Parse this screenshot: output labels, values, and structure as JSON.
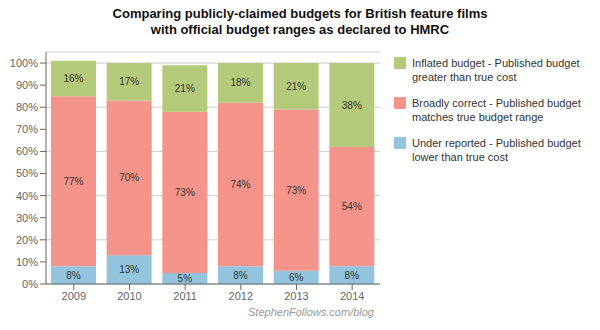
{
  "chart_data": {
    "type": "bar",
    "title": "Comparing publicly-claimed budgets for British feature films\nwith official budget ranges as declared to HMRC",
    "categories": [
      "2009",
      "2010",
      "2011",
      "2012",
      "2013",
      "2014"
    ],
    "series": [
      {
        "name": "Under reported - Published budget\nlower than true cost",
        "color": "#92c4de",
        "values": [
          8,
          13,
          5,
          8,
          6,
          8
        ],
        "value_labels": [
          "8%",
          "13%",
          "5%",
          "8%",
          "6%",
          "8%"
        ]
      },
      {
        "name": "Broadly correct - Published budget\nmatches true budget range",
        "color": "#f4948a",
        "values": [
          77,
          70,
          73,
          74,
          73,
          54
        ],
        "value_labels": [
          "77%",
          "70%",
          "73%",
          "74%",
          "73%",
          "54%"
        ]
      },
      {
        "name": "Inflated budget - Published budget\ngreater than true cost",
        "color": "#b5c97a",
        "values": [
          16,
          17,
          21,
          18,
          21,
          38
        ],
        "value_labels": [
          "16%",
          "17%",
          "21%",
          "18%",
          "21%",
          "38%"
        ]
      }
    ],
    "stacked": true,
    "data_labels": true,
    "ylim": [
      0,
      105
    ],
    "yticks": [
      {
        "value": 0,
        "label": "0%"
      },
      {
        "value": 10,
        "label": "10%"
      },
      {
        "value": 20,
        "label": "20%"
      },
      {
        "value": 30,
        "label": "30%"
      },
      {
        "value": 40,
        "label": "40%"
      },
      {
        "value": 50,
        "label": "50%"
      },
      {
        "value": 60,
        "label": "60%"
      },
      {
        "value": 70,
        "label": "70%"
      },
      {
        "value": 80,
        "label": "80%"
      },
      {
        "value": 90,
        "label": "90%"
      },
      {
        "value": 100,
        "label": "100%"
      }
    ],
    "grid": true,
    "legend": "right",
    "annotations": [
      "StephenFollows.com/blog"
    ]
  }
}
